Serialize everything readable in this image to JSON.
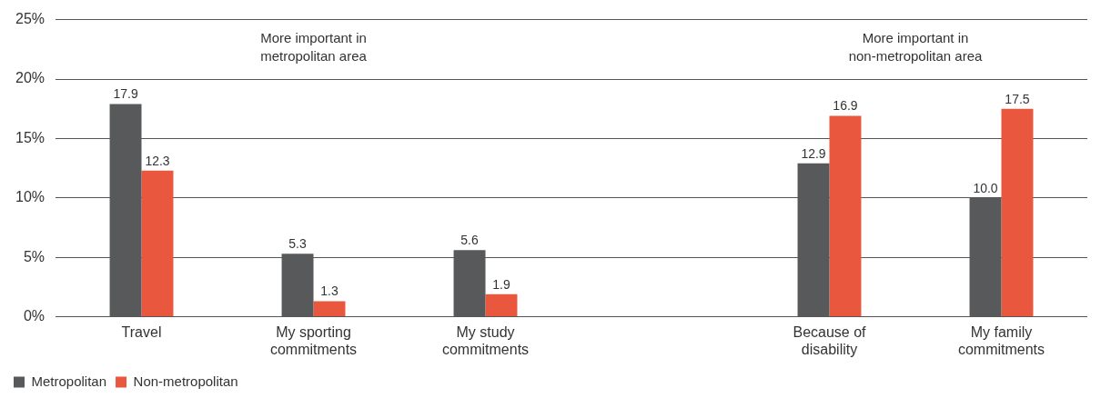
{
  "chart_data": {
    "type": "bar",
    "categories": [
      "Travel",
      "My sporting commitments",
      "My study commitments",
      null,
      "Because of disability",
      "My family commitments"
    ],
    "series": [
      {
        "name": "Metropolitan",
        "color": "#58595b",
        "values": [
          17.9,
          5.3,
          5.6,
          null,
          12.9,
          10.0
        ],
        "value_labels": [
          "17.9",
          "5.3",
          "5.6",
          null,
          "12.9",
          "10.0"
        ]
      },
      {
        "name": "Non-metropolitan",
        "color": "#e8573e",
        "values": [
          12.3,
          1.3,
          1.9,
          null,
          16.9,
          17.5
        ],
        "value_labels": [
          "12.3",
          "1.3",
          "1.9",
          null,
          "16.9",
          "17.5"
        ]
      }
    ],
    "ylim": [
      0,
      25
    ],
    "yticks": [
      {
        "value": 0,
        "label": "0%"
      },
      {
        "value": 5,
        "label": "5%"
      },
      {
        "value": 10,
        "label": "10%"
      },
      {
        "value": 15,
        "label": "15%"
      },
      {
        "value": 20,
        "label": "20%"
      },
      {
        "value": 25,
        "label": "25%"
      }
    ],
    "grid": "y",
    "legend": "bottom left",
    "annotations": [
      "More important in metropolitan area",
      "More important in non-metropolitan area"
    ]
  }
}
